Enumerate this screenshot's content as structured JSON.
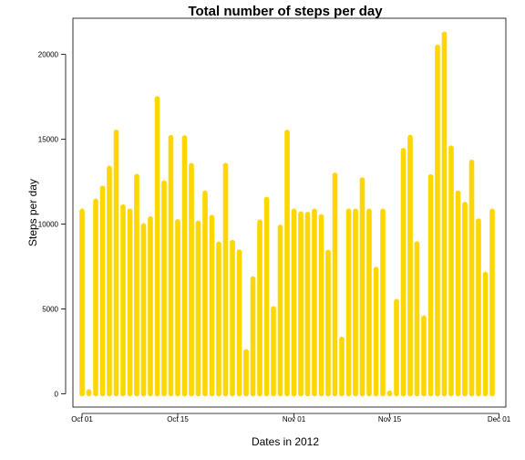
{
  "chart_data": {
    "type": "bar",
    "title": "Total number of steps per day",
    "xlabel": "Dates in 2012",
    "ylabel": "Steps per day",
    "x_ticks": [
      "Oct 01",
      "Oct 15",
      "Nov 01",
      "Nov 15",
      "Dec 01"
    ],
    "y_ticks": [
      "0",
      "5000",
      "10000",
      "15000",
      "20000"
    ],
    "ylim": [
      0,
      21500
    ],
    "bar_color": "#FFD700",
    "grid": false,
    "legend": "none",
    "categories": [
      "2012-10-01",
      "2012-10-02",
      "2012-10-03",
      "2012-10-04",
      "2012-10-05",
      "2012-10-06",
      "2012-10-07",
      "2012-10-08",
      "2012-10-09",
      "2012-10-10",
      "2012-10-11",
      "2012-10-12",
      "2012-10-13",
      "2012-10-14",
      "2012-10-15",
      "2012-10-16",
      "2012-10-17",
      "2012-10-18",
      "2012-10-19",
      "2012-10-20",
      "2012-10-21",
      "2012-10-22",
      "2012-10-23",
      "2012-10-24",
      "2012-10-25",
      "2012-10-26",
      "2012-10-27",
      "2012-10-28",
      "2012-10-29",
      "2012-10-30",
      "2012-10-31",
      "2012-11-01",
      "2012-11-02",
      "2012-11-03",
      "2012-11-04",
      "2012-11-05",
      "2012-11-06",
      "2012-11-07",
      "2012-11-08",
      "2012-11-09",
      "2012-11-10",
      "2012-11-11",
      "2012-11-12",
      "2012-11-13",
      "2012-11-14",
      "2012-11-15",
      "2012-11-16",
      "2012-11-17",
      "2012-11-18",
      "2012-11-19",
      "2012-11-20",
      "2012-11-21",
      "2012-11-22",
      "2012-11-23",
      "2012-11-24",
      "2012-11-25",
      "2012-11-26",
      "2012-11-27",
      "2012-11-28",
      "2012-11-29",
      "2012-11-30"
    ],
    "values": [
      10766,
      126,
      11352,
      12116,
      13294,
      15420,
      11015,
      10766,
      12811,
      9900,
      10304,
      17382,
      12426,
      15098,
      10139,
      15084,
      13452,
      10056,
      11829,
      10395,
      8821,
      13460,
      8918,
      8355,
      2492,
      6778,
      10119,
      11458,
      5018,
      9819,
      15414,
      10766,
      10600,
      10571,
      10766,
      10439,
      8334,
      12883,
      3219,
      10766,
      10766,
      12608,
      10765,
      7336,
      10766,
      41,
      5441,
      14339,
      15110,
      8841,
      4472,
      12787,
      20427,
      21194,
      14478,
      11834,
      11162,
      13646,
      10183,
      7047,
      10766
    ]
  }
}
